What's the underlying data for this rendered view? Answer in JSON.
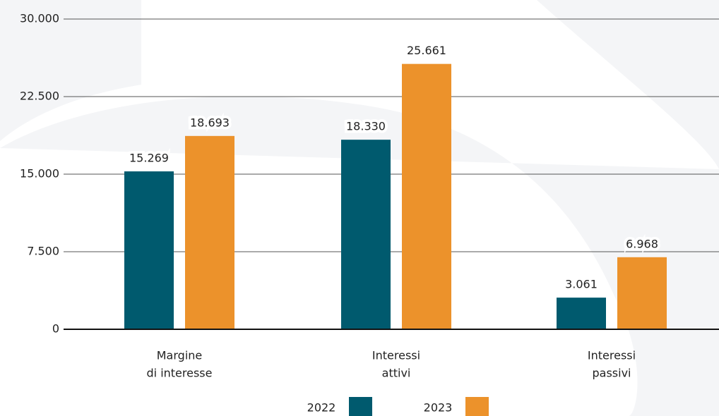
{
  "chart_data": {
    "type": "bar",
    "categories": [
      [
        "Margine",
        "di interesse"
      ],
      [
        "Interessi",
        "attivi"
      ],
      [
        "Interessi",
        "passivi"
      ]
    ],
    "series": [
      {
        "name": "2022",
        "color": "#005a6e",
        "values": [
          15269,
          18330,
          3061
        ],
        "value_labels": [
          "15.269",
          "18.330",
          "3.061"
        ]
      },
      {
        "name": "2023",
        "color": "#ec922b",
        "values": [
          18693,
          25661,
          6968
        ],
        "value_labels": [
          "18.693",
          "25.661",
          "6.968"
        ]
      }
    ],
    "ylim": [
      0,
      30000
    ],
    "yticks": [
      {
        "value": 0,
        "label": "0"
      },
      {
        "value": 7500,
        "label": "7.500"
      },
      {
        "value": 15000,
        "label": "15.000"
      },
      {
        "value": 22500,
        "label": "22.500"
      },
      {
        "value": 30000,
        "label": "30.000"
      }
    ],
    "grid": true
  }
}
